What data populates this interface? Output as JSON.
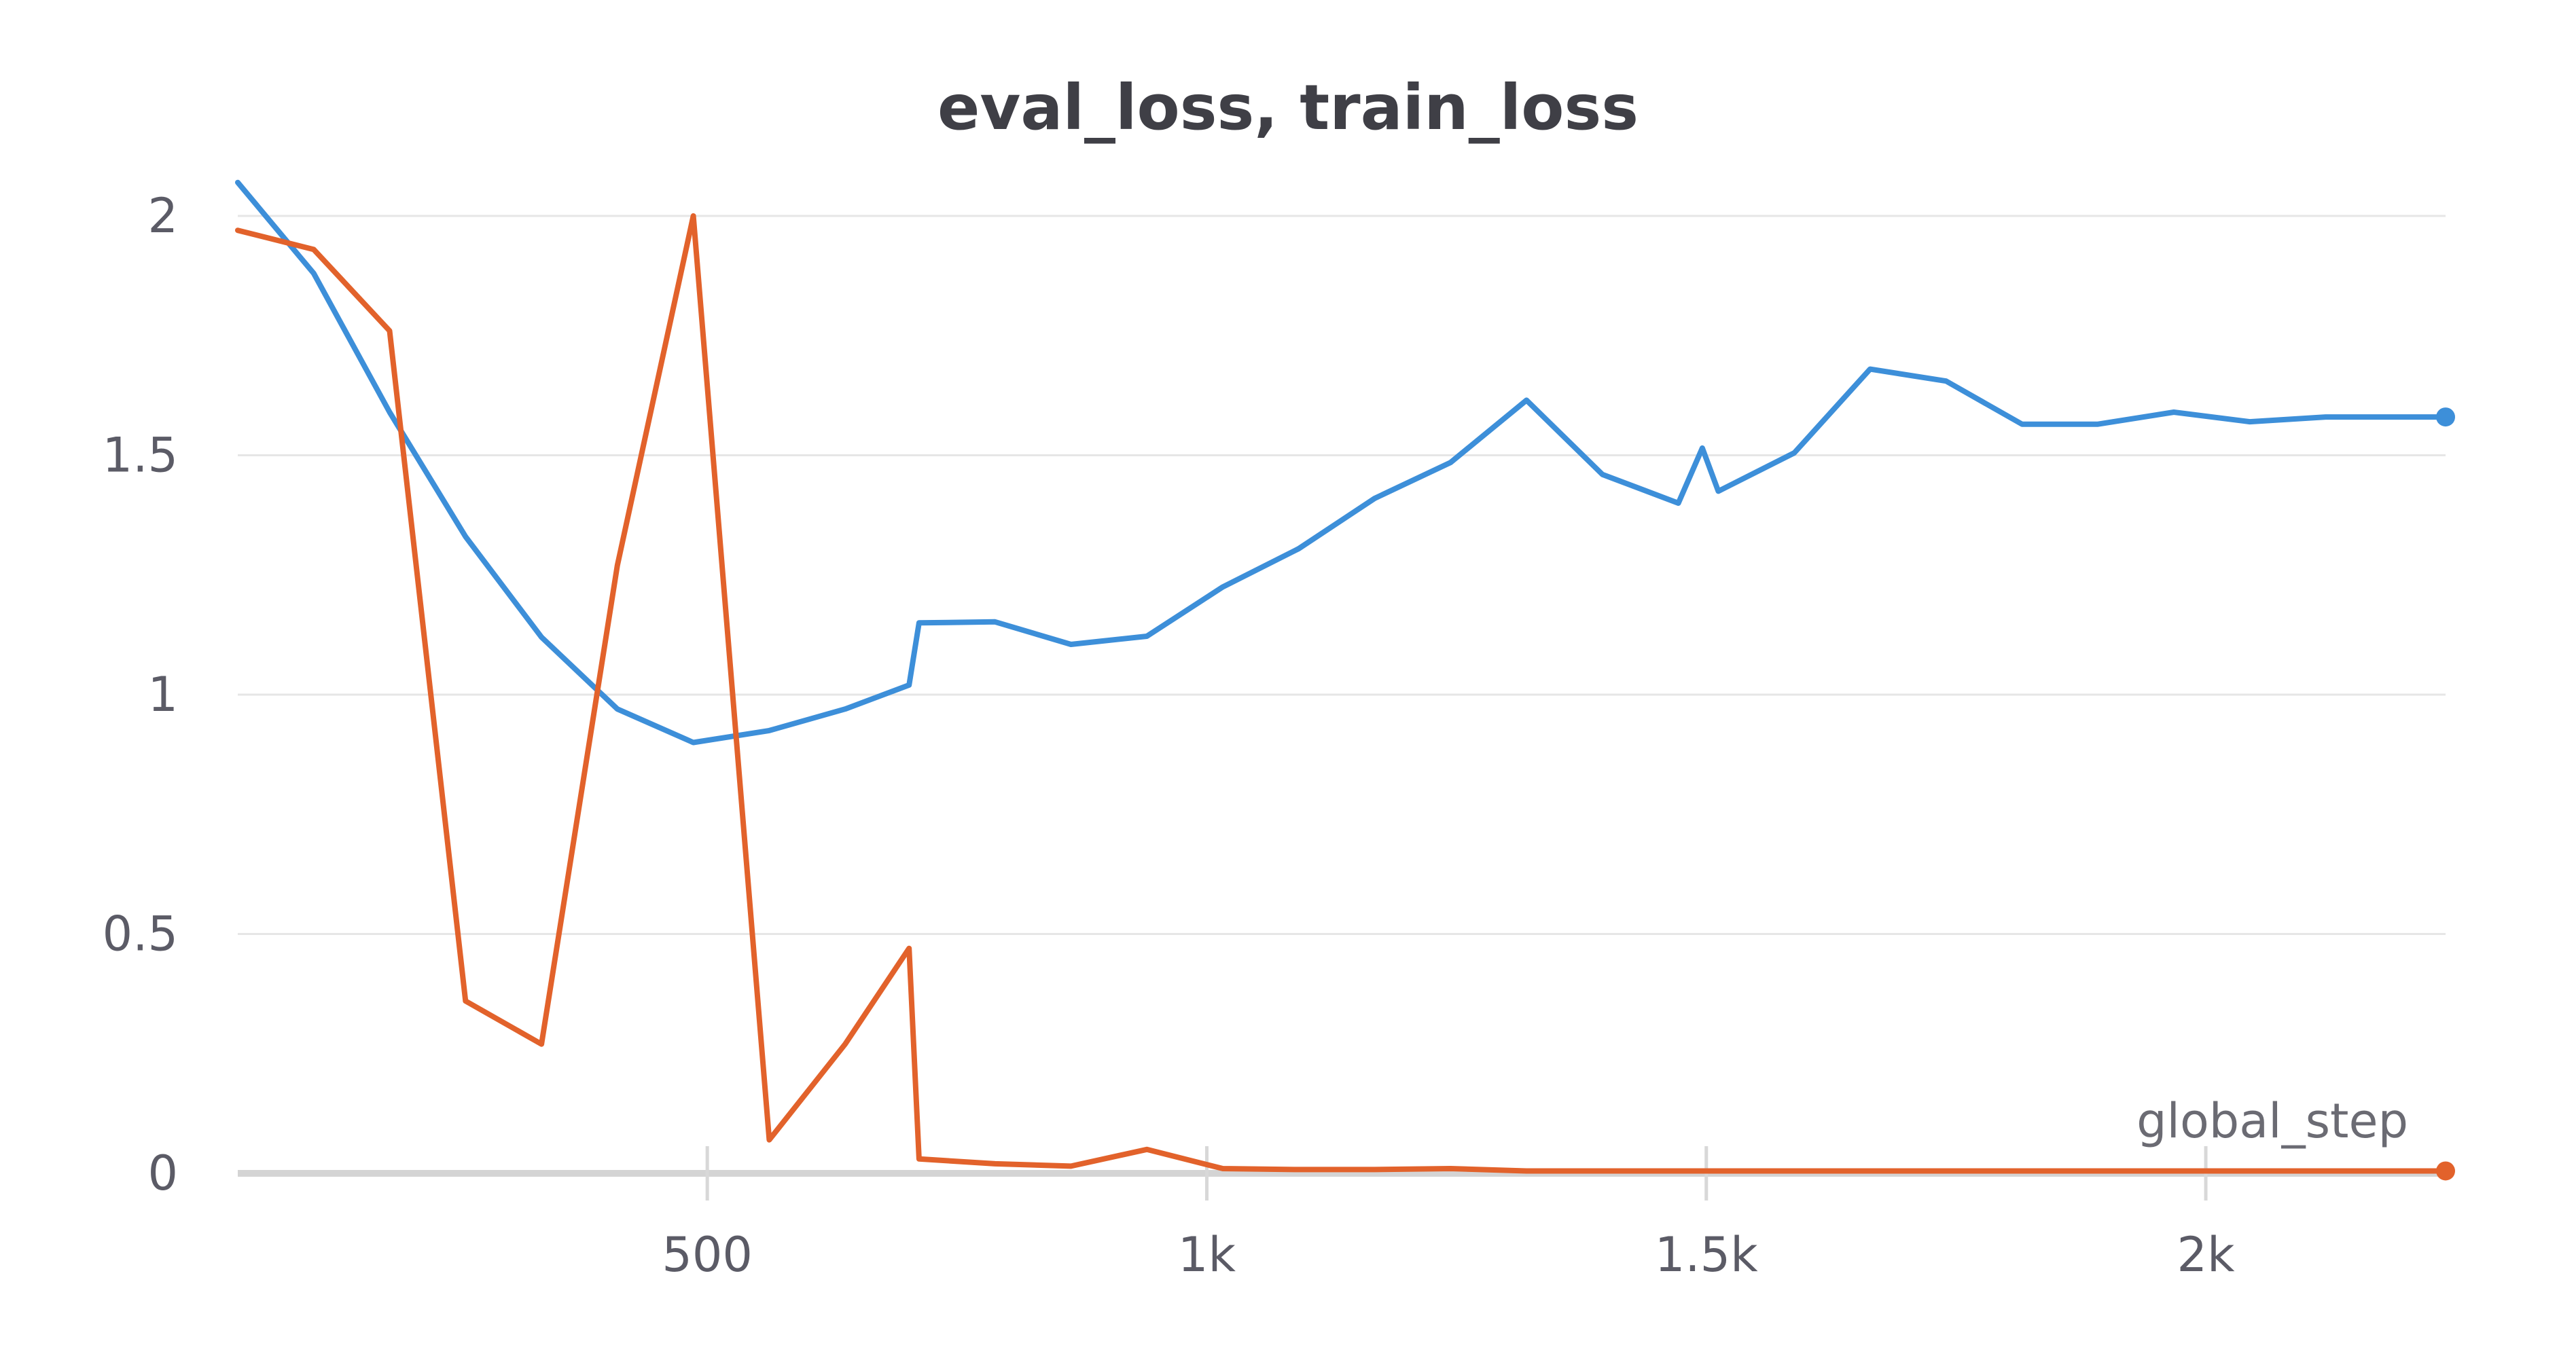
{
  "chart_data": {
    "type": "line",
    "title": "eval_loss, train_loss",
    "xlabel": "global_step",
    "ylabel": "",
    "xlim": [
      30,
      2240
    ],
    "ylim": [
      0,
      2.08
    ],
    "x_ticks": [
      500,
      1000,
      1500,
      2000
    ],
    "x_tick_labels": [
      "500",
      "1k",
      "1.5k",
      "2k"
    ],
    "y_ticks": [
      0,
      0.5,
      1,
      1.5,
      2
    ],
    "y_tick_labels": [
      "0",
      "0.5",
      "1",
      "1.5",
      "2"
    ],
    "grid": true,
    "legend": "none",
    "series": [
      {
        "color": "#3d8fd9",
        "x": [
          30,
          106,
          182,
          258,
          334,
          410,
          486,
          562,
          638,
          702,
          712,
          788,
          864,
          940,
          1016,
          1092,
          1168,
          1244,
          1320,
          1396,
          1472,
          1496,
          1512,
          1588,
          1664,
          1740,
          1816,
          1892,
          1968,
          2044,
          2120,
          2196,
          2240
        ],
        "y": [
          2.07,
          1.88,
          1.59,
          1.33,
          1.12,
          0.97,
          0.9,
          0.925,
          0.97,
          1.02,
          1.15,
          1.152,
          1.105,
          1.122,
          1.225,
          1.305,
          1.41,
          1.485,
          1.615,
          1.46,
          1.4,
          1.515,
          1.425,
          1.505,
          1.68,
          1.655,
          1.565,
          1.565,
          1.59,
          1.57,
          1.58,
          1.58,
          1.58
        ]
      },
      {
        "color": "#e2622b",
        "x": [
          30,
          106,
          182,
          258,
          334,
          410,
          486,
          562,
          638,
          702,
          712,
          788,
          864,
          940,
          1016,
          1092,
          1168,
          1244,
          1320,
          1396,
          1472,
          1512,
          1588,
          1664,
          1740,
          1816,
          1892,
          1968,
          2044,
          2120,
          2196,
          2240
        ],
        "y": [
          1.97,
          1.93,
          1.76,
          0.36,
          0.27,
          1.27,
          2.0,
          0.07,
          0.27,
          0.47,
          0.03,
          0.02,
          0.015,
          0.05,
          0.01,
          0.008,
          0.008,
          0.01,
          0.005,
          0.005,
          0.005,
          0.005,
          0.005,
          0.005,
          0.005,
          0.005,
          0.005,
          0.005,
          0.005,
          0.005,
          0.005,
          0.005
        ]
      }
    ]
  }
}
